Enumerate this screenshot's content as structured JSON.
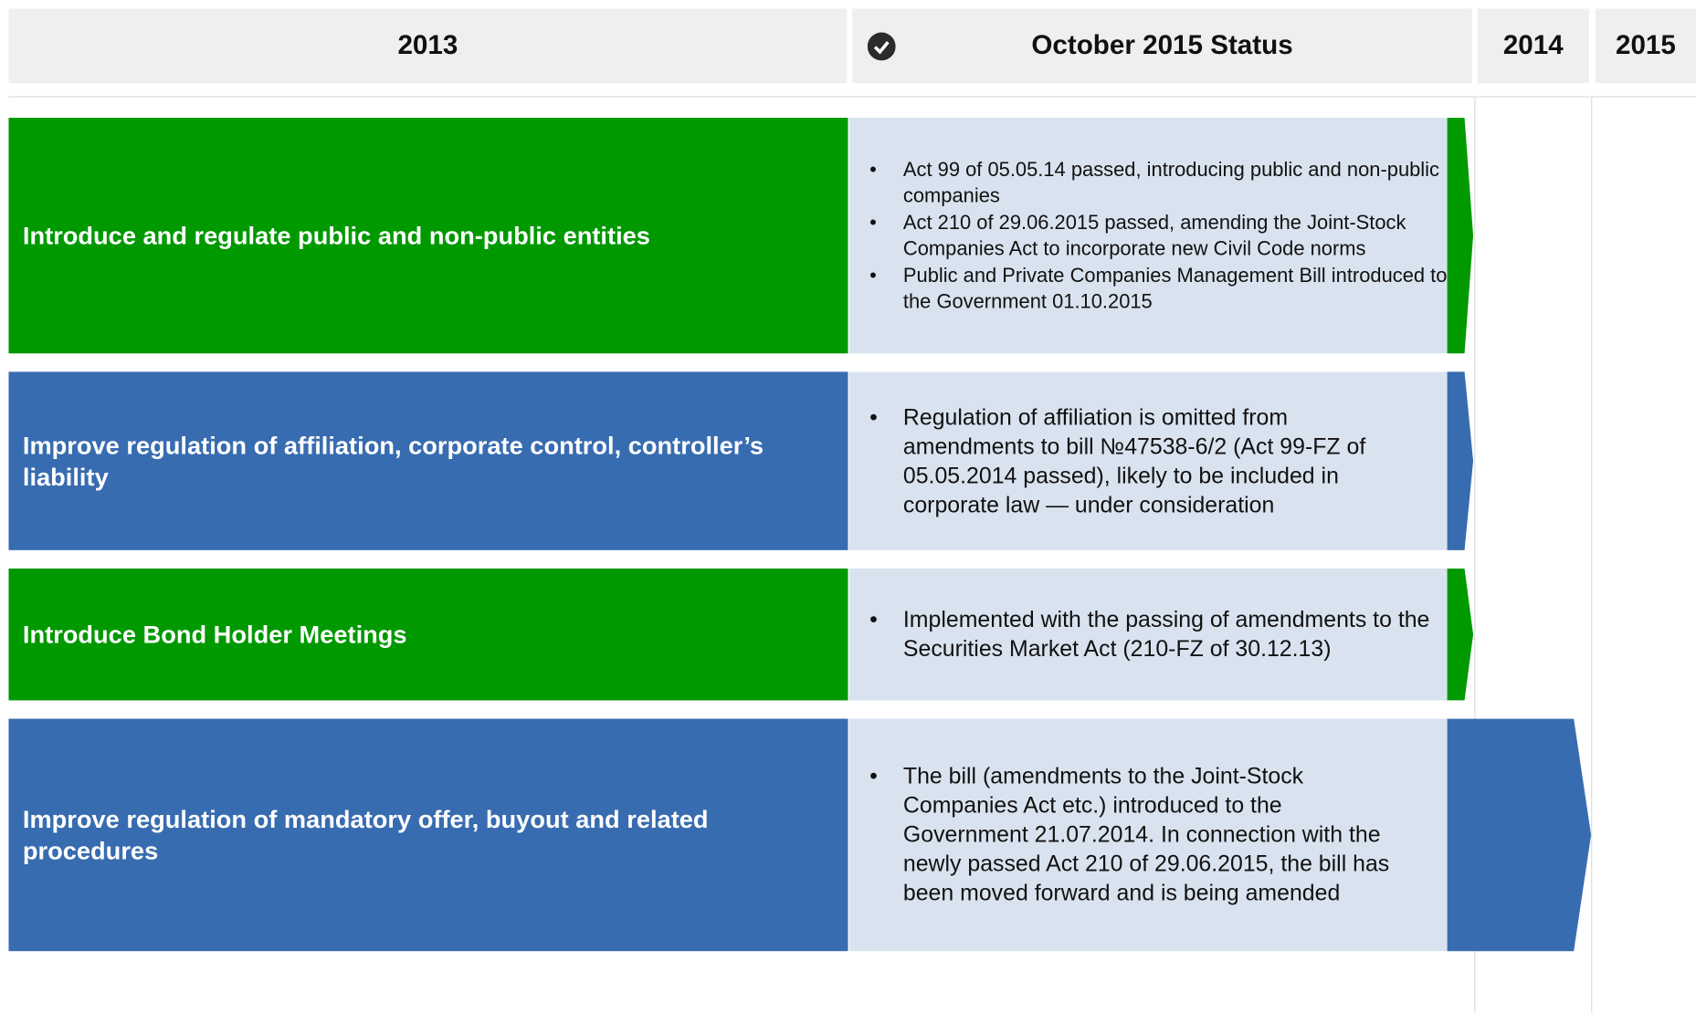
{
  "header": {
    "col_2013": "2013",
    "status": "October 2015 Status",
    "col_2014": "2014",
    "col_2015": "2015"
  },
  "rows": [
    {
      "title": "Introduce and regulate public and non-public entities",
      "color": "#009900",
      "bullets": [
        "Act 99 of 05.05.14 passed, introducing public and non-public companies",
        "Act 210 of 29.06.2015 passed, amending the Joint-Stock Companies Act to incorporate new Civil Code norms",
        "Public and Private Companies Management Bill introduced to the Government 01.10.2015"
      ]
    },
    {
      "title": "Improve regulation of affiliation, corporate control, controller’s liability",
      "color": "#386cb0",
      "bullets": [
        "Regulation of affiliation is omitted from amendments to bill №47538-6/2 (Act 99-FZ of 05.05.2014 passed), likely to be included in corporate law — under consideration"
      ]
    },
    {
      "title": "Introduce Bond Holder Meetings",
      "color": "#009900",
      "bullets": [
        "Implemented with the passing of amendments to the Securities Market Act (210-FZ of 30.12.13)"
      ]
    },
    {
      "title": "Improve regulation of mandatory offer, buyout and related procedures",
      "color": "#386cb0",
      "bullets": [
        "The bill (amendments to the Joint-Stock Companies Act etc.)  introduced to the Government 21.07.2014. In connection with the newly passed Act 210 of 29.06.2015, the bill has been moved forward and is being amended"
      ]
    }
  ]
}
